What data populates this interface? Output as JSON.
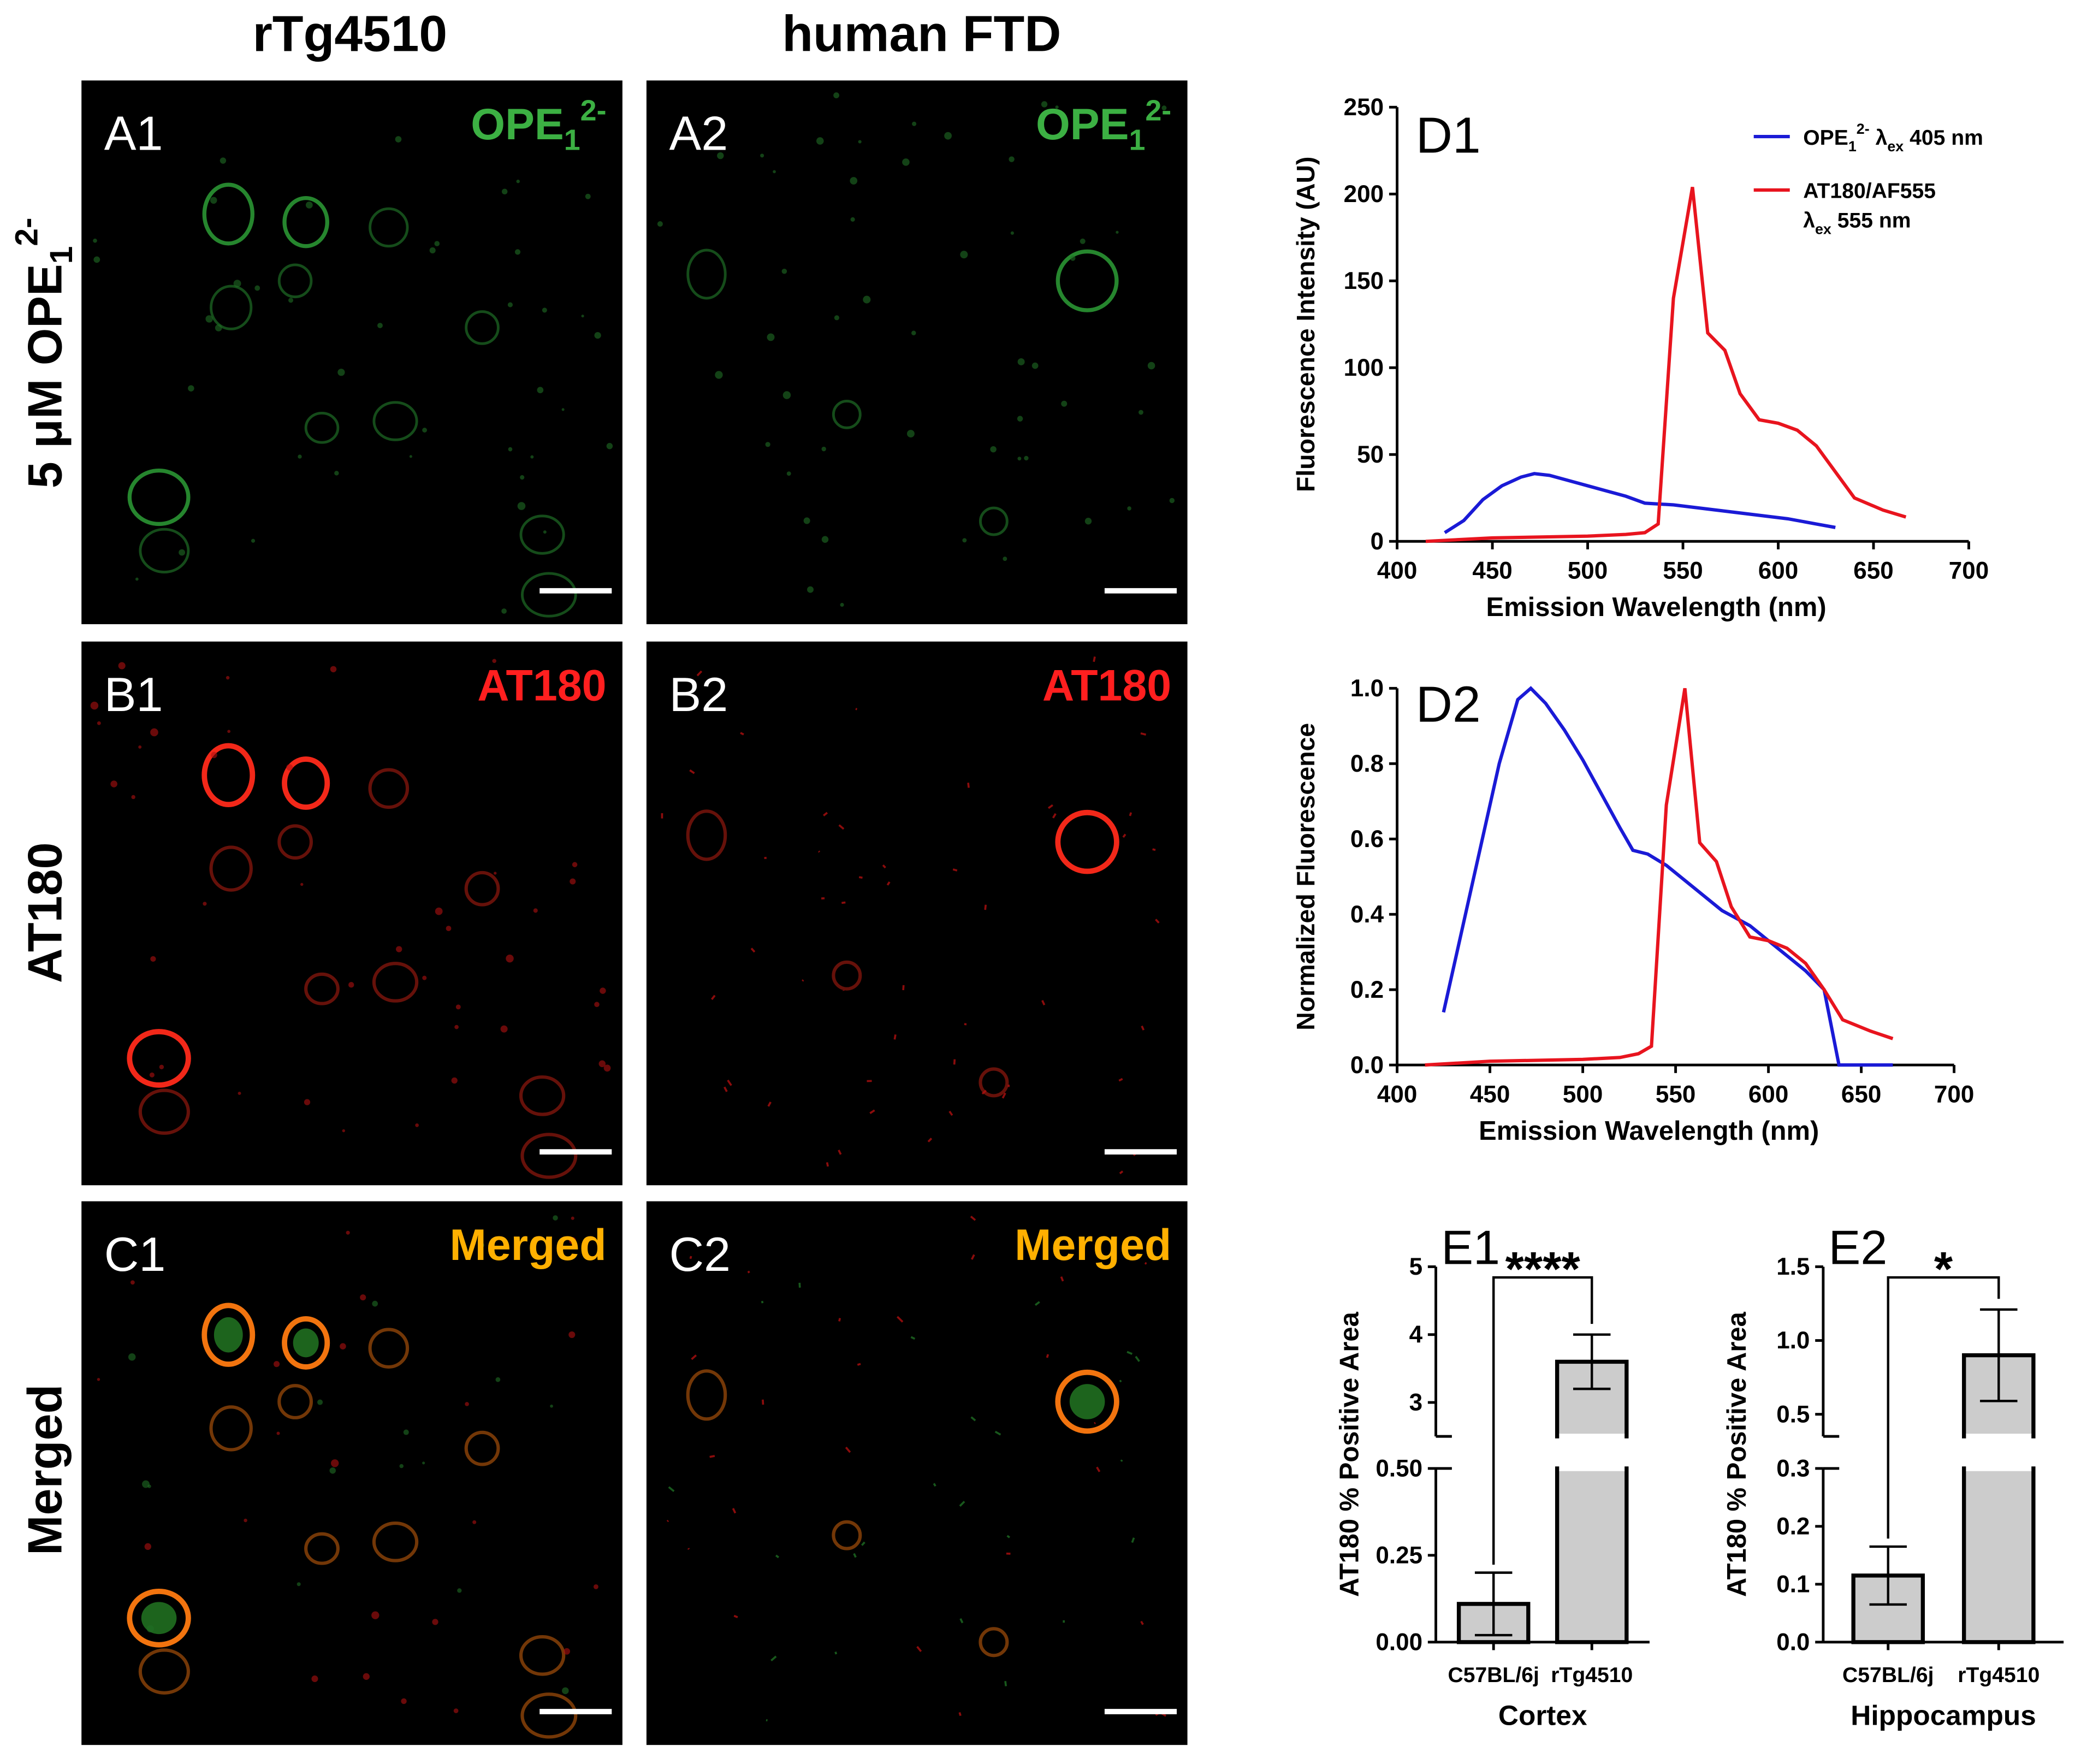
{
  "columns": {
    "col1": "rTg4510",
    "col2": "human FTD"
  },
  "rows": {
    "row1": "5 μM OPE",
    "row1_sub": "1",
    "row1_sup": "2-",
    "row2": "AT180",
    "row3": "Merged"
  },
  "panels": {
    "A1": {
      "id": "A1",
      "stain": "OPE",
      "stain_sub": "1",
      "stain_sup": "2-"
    },
    "A2": {
      "id": "A2",
      "stain": "OPE",
      "stain_sub": "1",
      "stain_sup": "2-"
    },
    "B1": {
      "id": "B1",
      "stain": "AT180"
    },
    "B2": {
      "id": "B2",
      "stain": "AT180"
    },
    "C1": {
      "id": "C1",
      "stain": "Merged"
    },
    "C2": {
      "id": "C2",
      "stain": "Merged"
    }
  },
  "colors": {
    "green": "#3cb043",
    "red": "#ff1f1f",
    "orange": "#ffb000",
    "blue": "#1a1ad6",
    "line_red": "#e8141e",
    "bar_fill": "#cccccc"
  },
  "chart_data": [
    {
      "id": "D1",
      "type": "line",
      "xlabel": "Emission Wavelength (nm)",
      "ylabel": "Fluorescence Intensity (AU)",
      "xlim": [
        400,
        700
      ],
      "ylim": [
        0,
        250
      ],
      "xticks": [
        400,
        450,
        500,
        550,
        600,
        650,
        700
      ],
      "yticks": [
        0,
        50,
        100,
        150,
        200,
        250
      ],
      "legend": "top-right",
      "series": [
        {
          "name": "OPE",
          "name_sub": "1",
          "name_sup": "2-",
          "name_suffix": " λ",
          "name_suffix_sub": "ex",
          "name_tail": " 405 nm",
          "color": "#1a1ad6",
          "x": [
            425,
            435,
            445,
            455,
            465,
            472,
            480,
            490,
            500,
            510,
            520,
            530,
            545,
            560,
            575,
            590,
            605,
            620,
            630
          ],
          "y": [
            5,
            12,
            24,
            32,
            37,
            39,
            38,
            35,
            32,
            29,
            26,
            22,
            21,
            19,
            17,
            15,
            13,
            10,
            8
          ]
        },
        {
          "name": "AT180/AF555",
          "name_line2": "λ",
          "name_line2_sub": "ex",
          "name_line2_tail": " 555 nm",
          "color": "#e8141e",
          "x": [
            415,
            450,
            500,
            520,
            530,
            537,
            545,
            555,
            563,
            572,
            580,
            590,
            600,
            610,
            620,
            630,
            640,
            655,
            667
          ],
          "y": [
            0,
            2,
            3,
            4,
            5,
            10,
            140,
            204,
            120,
            110,
            85,
            70,
            68,
            64,
            55,
            40,
            25,
            18,
            14
          ]
        }
      ]
    },
    {
      "id": "D2",
      "type": "line",
      "xlabel": "Emission Wavelength (nm)",
      "ylabel": "Normalized Fluorescence",
      "xlim": [
        400,
        700
      ],
      "ylim": [
        0,
        1.0
      ],
      "xticks": [
        400,
        450,
        500,
        550,
        600,
        650,
        700
      ],
      "yticks": [
        "0.0",
        "0.2",
        "0.4",
        "0.6",
        "0.8",
        "1.0"
      ],
      "series": [
        {
          "color": "#1a1ad6",
          "x": [
            425,
            435,
            445,
            455,
            465,
            472,
            480,
            490,
            500,
            510,
            520,
            527,
            535,
            545,
            560,
            575,
            590,
            605,
            620,
            630,
            638,
            645,
            667
          ],
          "y": [
            0.14,
            0.36,
            0.58,
            0.8,
            0.97,
            1.0,
            0.96,
            0.89,
            0.81,
            0.72,
            0.63,
            0.57,
            0.56,
            0.53,
            0.47,
            0.41,
            0.37,
            0.31,
            0.25,
            0.2,
            0.0,
            0.0,
            0.0
          ]
        },
        {
          "color": "#e8141e",
          "x": [
            415,
            450,
            500,
            520,
            530,
            537,
            545,
            555,
            563,
            572,
            580,
            590,
            600,
            610,
            620,
            630,
            640,
            655,
            667
          ],
          "y": [
            0.0,
            0.01,
            0.015,
            0.02,
            0.03,
            0.05,
            0.69,
            1.0,
            0.59,
            0.54,
            0.42,
            0.34,
            0.33,
            0.31,
            0.27,
            0.2,
            0.12,
            0.09,
            0.07
          ]
        }
      ]
    },
    {
      "id": "E1",
      "type": "bar",
      "ylabel": "AT180 % Positive Area",
      "xlabel": "Cortex",
      "categories": [
        "C57BL/6j",
        "rTg4510"
      ],
      "values": [
        0.11,
        3.6
      ],
      "error": [
        0.09,
        0.4
      ],
      "significance": "****",
      "ylim_lower": [
        0,
        0.5
      ],
      "ylim_upper": [
        2.5,
        5
      ],
      "yticks_lower": [
        "0.00",
        "0.25",
        "0.50"
      ],
      "yticks_upper": [
        "3",
        "4",
        "5"
      ]
    },
    {
      "id": "E2",
      "type": "bar",
      "ylabel": "AT180 % Positive Area",
      "xlabel": "Hippocampus",
      "categories": [
        "C57BL/6j",
        "rTg4510"
      ],
      "values": [
        0.115,
        0.9
      ],
      "error": [
        0.05,
        0.31
      ],
      "significance": "*",
      "ylim_lower": [
        0,
        0.3
      ],
      "ylim_upper": [
        0.35,
        1.5
      ],
      "yticks_lower": [
        "0.0",
        "0.1",
        "0.2",
        "0.3"
      ],
      "yticks_upper": [
        "0.5",
        "1.0",
        "1.5"
      ]
    }
  ]
}
